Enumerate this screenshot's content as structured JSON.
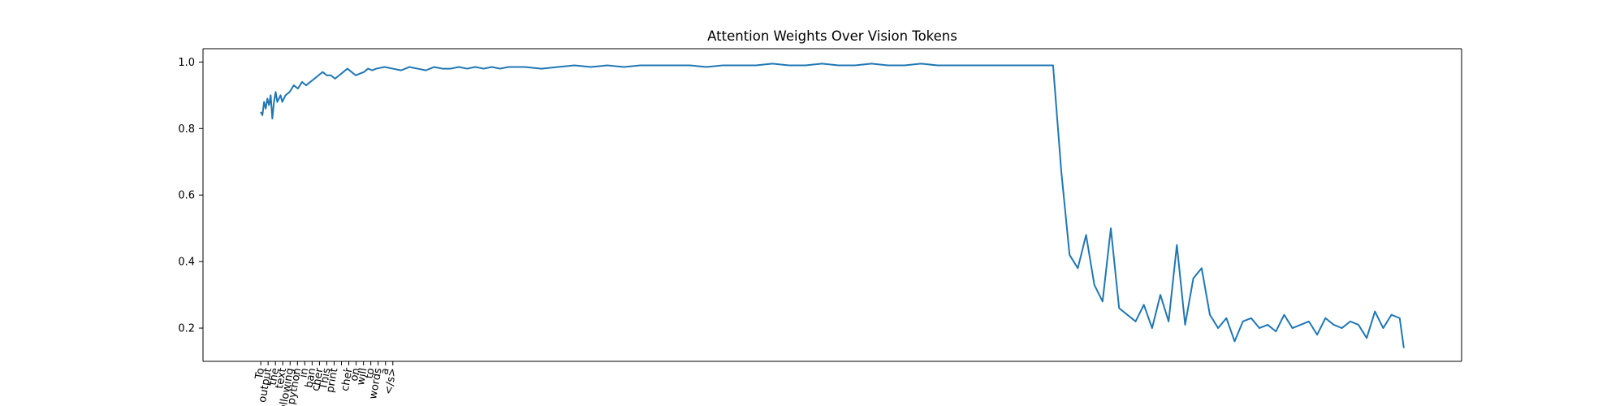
{
  "chart_data": {
    "type": "line",
    "title": "Attention Weights Over Vision Tokens",
    "xlabel": "",
    "ylabel": "",
    "ylim": [
      0.1,
      1.04
    ],
    "xlim": [
      -70,
      1455
    ],
    "grid": false,
    "legend": "none",
    "color": "#1f77b4",
    "yticks": [
      0.2,
      0.4,
      0.6,
      0.8,
      1.0
    ],
    "ytick_labels": [
      "0.2",
      "0.4",
      "0.6",
      "0.8",
      "1.0"
    ],
    "xtick_labels": [
      "To",
      "output",
      "the",
      "text",
      "following",
      "python",
      "in",
      "ban",
      "cher",
      "This",
      "print",
      ",",
      "cher",
      "on",
      "will",
      "to",
      "words",
      "a",
      "</s>"
    ],
    "series": [
      {
        "x": [
          0,
          2,
          4,
          6,
          8,
          10,
          12,
          14,
          16,
          18,
          20,
          22,
          24,
          26,
          28,
          30,
          35,
          40,
          45,
          50,
          55,
          60,
          65,
          70,
          75,
          80,
          85,
          90,
          95,
          100,
          105,
          110,
          115,
          120,
          125,
          130,
          135,
          140,
          150,
          160,
          170,
          180,
          190,
          200,
          210,
          220,
          230,
          240,
          250,
          260,
          270,
          280,
          290,
          300,
          320,
          340,
          360,
          380,
          400,
          420,
          440,
          460,
          480,
          500,
          520,
          540,
          560,
          580,
          600,
          620,
          640,
          660,
          680,
          700,
          720,
          740,
          760,
          780,
          800,
          820,
          840,
          860,
          880,
          900,
          920,
          940,
          960,
          970,
          980,
          990,
          1000,
          1010,
          1020,
          1030,
          1040,
          1050,
          1060,
          1070,
          1080,
          1090,
          1100,
          1110,
          1120,
          1130,
          1140,
          1150,
          1160,
          1170,
          1180,
          1190,
          1200,
          1210,
          1220,
          1230,
          1240,
          1250,
          1260,
          1270,
          1280,
          1290,
          1300,
          1310,
          1320,
          1330,
          1340,
          1350,
          1360,
          1370,
          1380,
          1385
        ],
        "y": [
          0.85,
          0.84,
          0.88,
          0.86,
          0.89,
          0.87,
          0.9,
          0.83,
          0.88,
          0.91,
          0.88,
          0.89,
          0.9,
          0.88,
          0.89,
          0.9,
          0.91,
          0.93,
          0.92,
          0.94,
          0.93,
          0.94,
          0.95,
          0.96,
          0.97,
          0.96,
          0.96,
          0.95,
          0.96,
          0.97,
          0.98,
          0.97,
          0.96,
          0.965,
          0.97,
          0.98,
          0.975,
          0.98,
          0.985,
          0.98,
          0.975,
          0.985,
          0.98,
          0.975,
          0.985,
          0.98,
          0.98,
          0.985,
          0.98,
          0.985,
          0.98,
          0.985,
          0.98,
          0.985,
          0.985,
          0.98,
          0.985,
          0.99,
          0.985,
          0.99,
          0.985,
          0.99,
          0.99,
          0.99,
          0.99,
          0.985,
          0.99,
          0.99,
          0.99,
          0.995,
          0.99,
          0.99,
          0.995,
          0.99,
          0.99,
          0.995,
          0.99,
          0.99,
          0.995,
          0.99,
          0.99,
          0.99,
          0.99,
          0.99,
          0.99,
          0.99,
          0.99,
          0.67,
          0.42,
          0.38,
          0.48,
          0.33,
          0.28,
          0.5,
          0.26,
          0.24,
          0.22,
          0.27,
          0.2,
          0.3,
          0.22,
          0.45,
          0.21,
          0.35,
          0.38,
          0.24,
          0.2,
          0.23,
          0.16,
          0.22,
          0.23,
          0.2,
          0.21,
          0.19,
          0.24,
          0.2,
          0.21,
          0.22,
          0.18,
          0.23,
          0.21,
          0.2,
          0.22,
          0.21,
          0.17,
          0.25,
          0.2,
          0.24,
          0.23,
          0.14
        ]
      }
    ]
  }
}
